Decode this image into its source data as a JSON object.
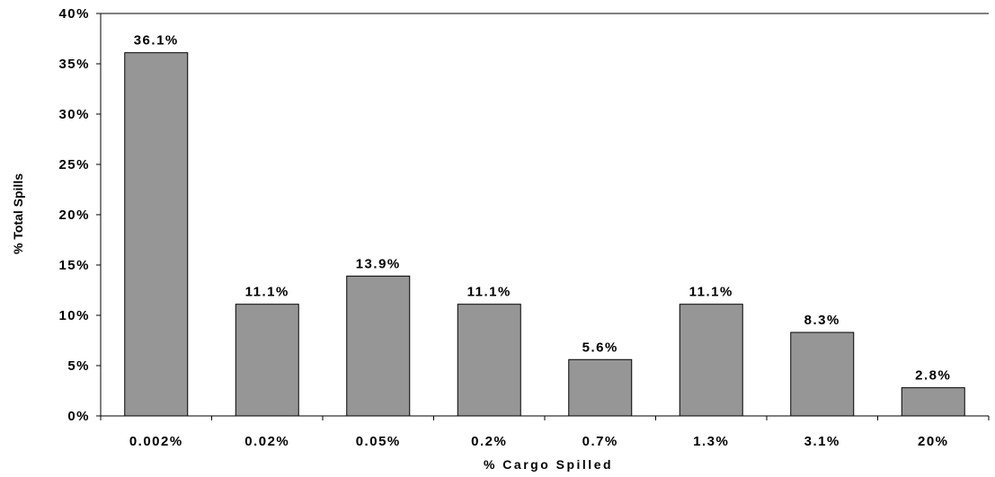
{
  "chart_data": {
    "type": "bar",
    "title": "",
    "xlabel": "% Cargo Spilled",
    "ylabel": "% Total Spills",
    "categories": [
      "0.002%",
      "0.02%",
      "0.05%",
      "0.2%",
      "0.7%",
      "1.3%",
      "3.1%",
      "20%"
    ],
    "values": [
      36.1,
      11.1,
      13.9,
      11.1,
      5.6,
      11.1,
      8.3,
      2.8
    ],
    "data_labels": [
      "36.1%",
      "11.1%",
      "13.9%",
      "11.1%",
      "5.6%",
      "11.1%",
      "8.3%",
      "2.8%"
    ],
    "ylim": [
      0,
      40
    ],
    "yticks": [
      0,
      5,
      10,
      15,
      20,
      25,
      30,
      35,
      40
    ],
    "ytick_labels": [
      "0%",
      "5%",
      "10%",
      "15%",
      "20%",
      "25%",
      "30%",
      "35%",
      "40%"
    ],
    "grid": false,
    "legend": "none",
    "colors": {
      "bar_fill": "#969696",
      "bar_stroke": "#000000",
      "axis": "#000000"
    }
  }
}
